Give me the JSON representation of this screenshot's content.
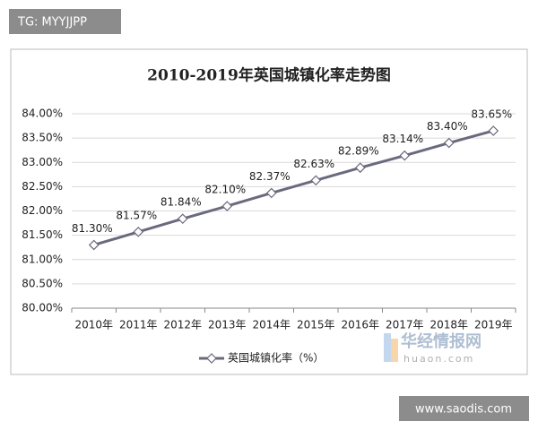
{
  "chart_data": {
    "type": "line",
    "title": "2010-2019年英国城镇化率走势图",
    "categories": [
      "2010年",
      "2011年",
      "2012年",
      "2013年",
      "2014年",
      "2015年",
      "2016年",
      "2017年",
      "2018年",
      "2019年"
    ],
    "series": [
      {
        "name": "英国城镇化率（%）",
        "color": "#6a6a7e",
        "values": [
          81.3,
          81.57,
          81.84,
          82.1,
          82.37,
          82.63,
          82.89,
          83.14,
          83.4,
          83.65
        ],
        "value_labels": [
          "81.30%",
          "81.57%",
          "81.84%",
          "82.10%",
          "82.37%",
          "82.63%",
          "82.89%",
          "83.14%",
          "83.40%",
          "83.65%"
        ]
      }
    ],
    "ylim": [
      80,
      84
    ],
    "yticks": [
      {
        "value": 80,
        "label": "80.00%"
      },
      {
        "value": 80.5,
        "label": "80.50%"
      },
      {
        "value": 81,
        "label": "81.00%"
      },
      {
        "value": 81.5,
        "label": "81.50%"
      },
      {
        "value": 82,
        "label": "82.00%"
      },
      {
        "value": 82.5,
        "label": "82.50%"
      },
      {
        "value": 83,
        "label": "83.00%"
      },
      {
        "value": 83.5,
        "label": "83.50%"
      },
      {
        "value": 84,
        "label": "84.00%"
      }
    ],
    "grid": true,
    "legend": "bottom"
  },
  "watermarks": {
    "top_left": "TG: MYYJJPP",
    "bottom_right": "www.saodis.com",
    "logo": "华经情报网",
    "logo_url": "huaon.com"
  }
}
